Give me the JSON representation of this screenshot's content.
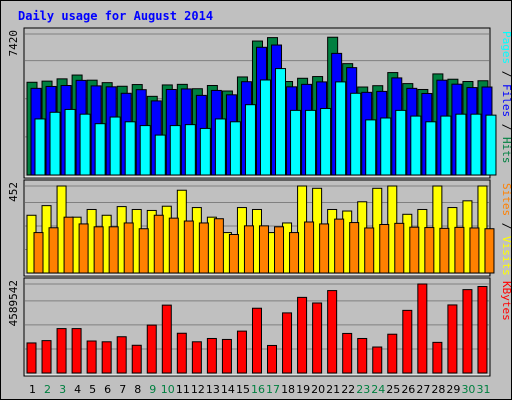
{
  "chart_data": {
    "type": "bar",
    "title": "Daily usage for August 2014",
    "categories": [
      "1",
      "2",
      "3",
      "4",
      "5",
      "6",
      "7",
      "8",
      "9",
      "10",
      "11",
      "12",
      "13",
      "14",
      "15",
      "16",
      "17",
      "18",
      "19",
      "20",
      "21",
      "22",
      "23",
      "24",
      "25",
      "26",
      "27",
      "28",
      "29",
      "30",
      "31"
    ],
    "weekend_days": [
      "2",
      "3",
      "9",
      "10",
      "16",
      "17",
      "23",
      "24",
      "30",
      "31"
    ],
    "panels": [
      {
        "id": "hits",
        "ymax_label": "7420",
        "ymax": 7420,
        "series": [
          {
            "name": "Hits",
            "color": "#008040",
            "values": [
              4880,
              4940,
              5060,
              5260,
              4990,
              4860,
              4670,
              4760,
              4140,
              4740,
              4770,
              4540,
              4710,
              4420,
              5160,
              7050,
              7230,
              4920,
              5090,
              5180,
              7250,
              5860,
              4630,
              4700,
              5390,
              4810,
              4500,
              5320,
              5040,
              4920,
              4960
            ]
          },
          {
            "name": "Files",
            "color": "#0000ff",
            "values": [
              4560,
              4660,
              4710,
              4980,
              4690,
              4640,
              4300,
              4490,
              3900,
              4500,
              4530,
              4190,
              4450,
              4220,
              4910,
              6720,
              6840,
              4640,
              4770,
              4900,
              6400,
              5650,
              4350,
              4400,
              5110,
              4560,
              4290,
              4990,
              4780,
              4600,
              4630
            ]
          },
          {
            "name": "Pages",
            "color": "#00ffff",
            "values": [
              2950,
              3300,
              3450,
              3200,
              2700,
              3050,
              2800,
              2600,
              2100,
              2600,
              2650,
              2450,
              2950,
              2800,
              3700,
              5000,
              5600,
              3400,
              3400,
              3500,
              4900,
              4300,
              2900,
              3000,
              3400,
              3100,
              2800,
              3100,
              3200,
              3200,
              3150
            ]
          }
        ],
        "legend_words": [
          "Pages",
          "Files",
          "Hits"
        ]
      },
      {
        "id": "visits",
        "ymax_label": "452",
        "ymax": 452,
        "series": [
          {
            "name": "Visits",
            "color": "#ffff00",
            "values": [
              300,
              350,
              452,
              290,
              330,
              300,
              345,
              330,
              325,
              347,
              430,
              340,
              290,
              210,
              340,
              330,
              210,
              260,
              452,
              440,
              330,
              322,
              370,
              440,
              452,
              305,
              330,
              452,
              340,
              375,
              452
            ]
          },
          {
            "name": "Sites",
            "color": "#ff8000",
            "values": [
              210,
              235,
              290,
              255,
              240,
              240,
              260,
              230,
              300,
              285,
              270,
              260,
              282,
              200,
              245,
              245,
              240,
              210,
              265,
              255,
              280,
              262,
              234,
              252,
              258,
              238,
              236,
              232,
              237,
              234,
              230
            ]
          }
        ],
        "legend_words": [
          "Sites",
          "Visits"
        ]
      },
      {
        "id": "kbytes",
        "ymax_label": "4589542",
        "ymax": 4589542,
        "series": [
          {
            "name": "KBytes",
            "color": "#ff0000",
            "values": [
              1550000,
              1670000,
              2290000,
              2290000,
              1650000,
              1610000,
              1870000,
              1430000,
              2470000,
              3500000,
              2050000,
              1610000,
              1780000,
              1730000,
              2160000,
              3340000,
              1420000,
              3100000,
              3900000,
              3610000,
              4250000,
              2040000,
              1780000,
              1340000,
              2000000,
              3230000,
              4590000,
              1580000,
              3510000,
              4300000,
              4460000
            ]
          }
        ],
        "legend_words": [
          "KBytes"
        ]
      }
    ],
    "colors": {
      "title": "#0000ff",
      "axis_label": "#000000",
      "day_weekday": "#000000",
      "day_weekend": "#008040",
      "panel_bg": "#c0c0c0",
      "bar_outline": "#000000"
    },
    "grid": true,
    "legend_placement": "right"
  }
}
